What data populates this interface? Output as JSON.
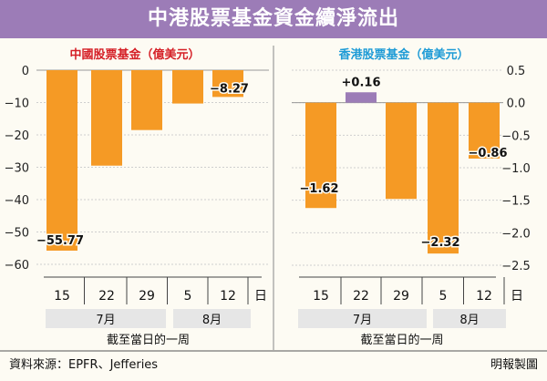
{
  "title": "中港股票基金資金續淨流出",
  "colors": {
    "title_bg": "#9c7cb7",
    "negative_bar": "#f59a25",
    "positive_bar": "#9c7cb7",
    "left_title": "#d51f26",
    "right_title": "#1e9bd6",
    "month_bg": "#e6e6e6"
  },
  "chart_data": [
    {
      "type": "bar",
      "title": "中國股票基金（億美元）",
      "categories": [
        "15",
        "22",
        "29",
        "5",
        "12"
      ],
      "values": [
        -55.77,
        -29.5,
        -18.5,
        -10.3,
        -8.27
      ],
      "data_labels": [
        {
          "index": 0,
          "text": "−55.77"
        },
        {
          "index": 4,
          "text": "−8.27"
        }
      ],
      "yticks": [
        {
          "value": 0,
          "label": "0"
        },
        {
          "value": -10,
          "label": "−10"
        },
        {
          "value": -20,
          "label": "−20"
        },
        {
          "value": -30,
          "label": "−30"
        },
        {
          "value": -40,
          "label": "−40"
        },
        {
          "value": -50,
          "label": "−50"
        },
        {
          "value": -60,
          "label": "−60"
        }
      ],
      "ylim": [
        -60,
        0
      ],
      "axis_side": "left",
      "day_unit": "日",
      "months": [
        {
          "label": "7月",
          "span": [
            0,
            2
          ]
        },
        {
          "label": "8月",
          "span": [
            3,
            4
          ]
        }
      ],
      "xlabel": "截至當日的一周"
    },
    {
      "type": "bar",
      "title": "香港股票基金（億美元）",
      "categories": [
        "15",
        "22",
        "29",
        "5",
        "12"
      ],
      "values": [
        -1.62,
        0.16,
        -1.48,
        -2.32,
        -0.86
      ],
      "data_labels": [
        {
          "index": 0,
          "text": "−1.62"
        },
        {
          "index": 1,
          "text": "+0.16"
        },
        {
          "index": 3,
          "text": "−2.32"
        },
        {
          "index": 4,
          "text": "−0.86"
        }
      ],
      "yticks": [
        {
          "value": 0.5,
          "label": "0.5"
        },
        {
          "value": 0.0,
          "label": "0.0"
        },
        {
          "value": -0.5,
          "label": "−0.5"
        },
        {
          "value": -1.0,
          "label": "−1.0"
        },
        {
          "value": -1.5,
          "label": "−1.5"
        },
        {
          "value": -2.0,
          "label": "−2.0"
        },
        {
          "value": -2.5,
          "label": "−2.5"
        }
      ],
      "ylim": [
        -2.5,
        0.5
      ],
      "axis_side": "right",
      "day_unit": "日",
      "months": [
        {
          "label": "7月",
          "span": [
            0,
            2
          ]
        },
        {
          "label": "8月",
          "span": [
            3,
            4
          ]
        }
      ],
      "xlabel": "截至當日的一周"
    }
  ],
  "footer": {
    "source": "資料來源：EPFR、Jefferies",
    "credit": "明報製圖"
  }
}
